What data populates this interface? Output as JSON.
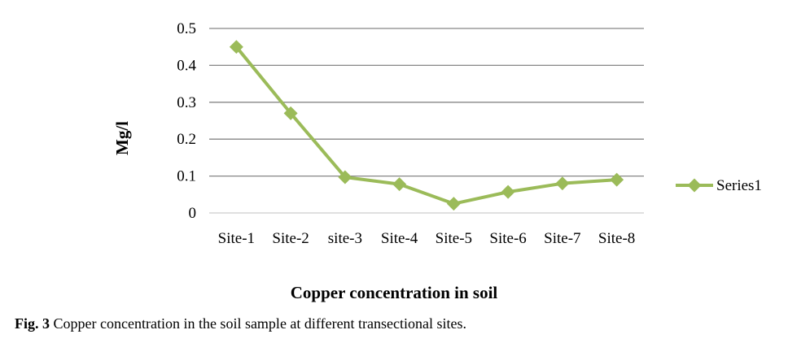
{
  "chart_data": {
    "type": "line",
    "categories": [
      "Site-1",
      "Site-2",
      "site-3",
      "Site-4",
      "Site-5",
      "Site-6",
      "Site-7",
      "Site-8"
    ],
    "series": [
      {
        "name": "Series1",
        "values": [
          0.45,
          0.27,
          0.097,
          0.078,
          0.025,
          0.057,
          0.08,
          0.09
        ]
      }
    ],
    "ylabel": "Mg/l",
    "xlabel": "Copper concentration in soil",
    "ylim": [
      0,
      0.5
    ],
    "yticks": [
      0,
      0.1,
      0.2,
      0.3,
      0.4,
      0.5
    ],
    "ytick_labels": [
      "0",
      "0.1",
      "0.2",
      "0.3",
      "0.4",
      "0.5"
    ],
    "grid": true,
    "legend_position": "right",
    "series_color": "#9bbb59",
    "gridline_color": "#868686"
  },
  "caption": {
    "label": "Fig. 3",
    "text": " Copper concentration in the soil sample at different transectional sites."
  }
}
